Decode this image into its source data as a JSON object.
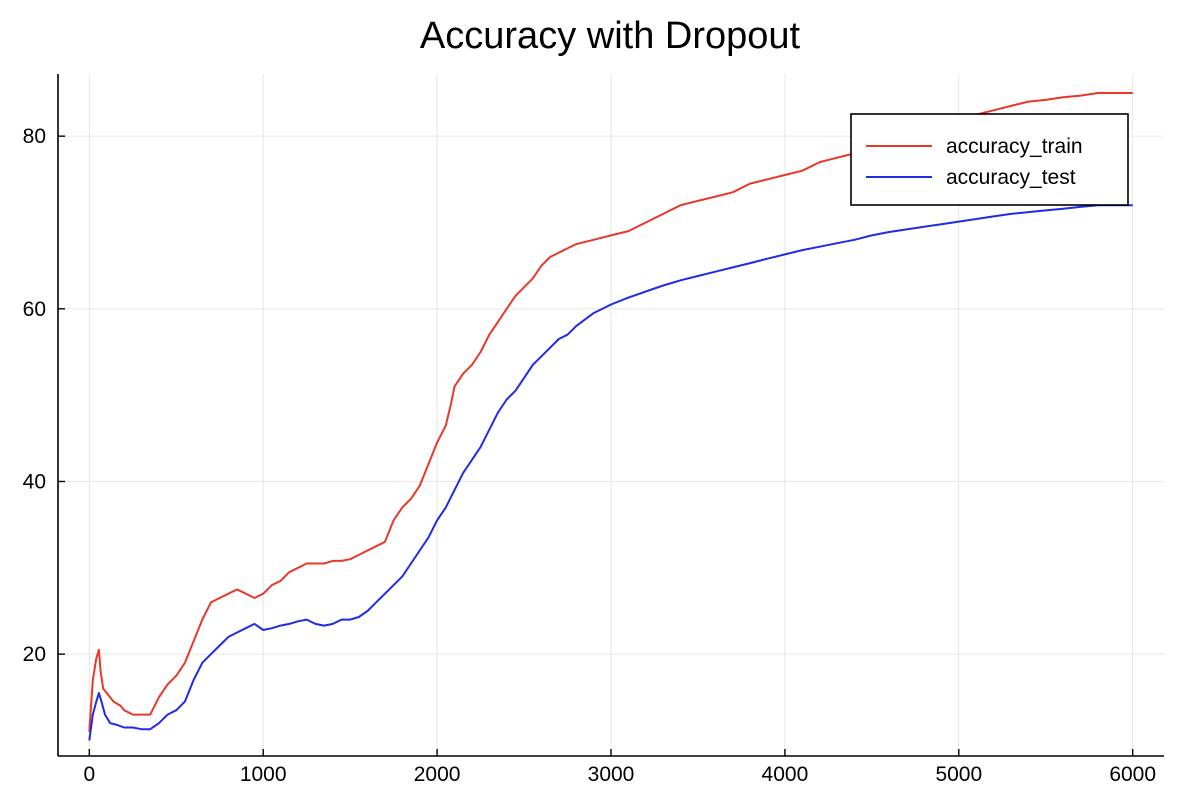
{
  "chart_data": {
    "type": "line",
    "title": "Accuracy with Dropout",
    "xlabel": "",
    "ylabel": "",
    "xlim": [
      -180,
      6180
    ],
    "ylim": [
      8.2,
      87.2
    ],
    "xticks": [
      0,
      1000,
      2000,
      3000,
      4000,
      5000,
      6000
    ],
    "yticks": [
      20,
      40,
      60,
      80
    ],
    "grid": true,
    "legend": {
      "position": "top-right"
    },
    "series": [
      {
        "name": "accuracy_train",
        "color": "#e8382a",
        "x": [
          0,
          20,
          40,
          55,
          65,
          80,
          100,
          140,
          180,
          200,
          250,
          300,
          350,
          400,
          450,
          500,
          550,
          600,
          650,
          700,
          750,
          800,
          850,
          900,
          950,
          1000,
          1050,
          1100,
          1150,
          1200,
          1250,
          1300,
          1350,
          1400,
          1450,
          1500,
          1550,
          1600,
          1650,
          1700,
          1750,
          1800,
          1850,
          1900,
          1950,
          2000,
          2050,
          2080,
          2100,
          2150,
          2200,
          2250,
          2300,
          2350,
          2400,
          2450,
          2500,
          2550,
          2600,
          2650,
          2700,
          2750,
          2800,
          2900,
          3000,
          3100,
          3200,
          3300,
          3400,
          3500,
          3600,
          3700,
          3800,
          3900,
          4000,
          4100,
          4200,
          4300,
          4400,
          4500,
          4600,
          4700,
          4800,
          4900,
          5000,
          5100,
          5200,
          5300,
          5400,
          5500,
          5600,
          5700,
          5800,
          5900,
          6000
        ],
        "y": [
          11,
          17,
          19.5,
          20.5,
          18,
          16,
          15.5,
          14.5,
          14,
          13.5,
          13,
          13,
          13,
          15,
          16.5,
          17.5,
          19,
          21.5,
          24,
          26,
          26.5,
          27,
          27.5,
          27,
          26.5,
          27,
          28,
          28.5,
          29.5,
          30,
          30.5,
          30.5,
          30.5,
          30.8,
          30.8,
          31,
          31.5,
          32,
          32.5,
          33,
          35.5,
          37,
          38,
          39.5,
          42,
          44.5,
          46.5,
          49,
          51,
          52.5,
          53.5,
          55,
          57,
          58.5,
          60,
          61.5,
          62.5,
          63.5,
          65,
          66,
          66.5,
          67,
          67.5,
          68,
          68.5,
          69,
          70,
          71,
          72,
          72.5,
          73,
          73.5,
          74.5,
          75,
          75.5,
          76,
          77,
          77.5,
          78,
          78.5,
          79,
          80,
          80.5,
          81,
          81.5,
          82.5,
          83,
          83.5,
          84,
          84.2,
          84.5,
          84.7,
          85,
          85,
          85
        ]
      },
      {
        "name": "accuracy_test",
        "color": "#1f2be8",
        "x": [
          0,
          20,
          40,
          55,
          70,
          90,
          120,
          160,
          200,
          250,
          300,
          350,
          400,
          450,
          500,
          550,
          600,
          650,
          700,
          750,
          800,
          850,
          900,
          950,
          1000,
          1050,
          1100,
          1150,
          1200,
          1250,
          1300,
          1350,
          1400,
          1450,
          1500,
          1550,
          1600,
          1650,
          1700,
          1750,
          1800,
          1850,
          1900,
          1950,
          2000,
          2050,
          2100,
          2150,
          2200,
          2250,
          2300,
          2350,
          2400,
          2450,
          2500,
          2550,
          2600,
          2650,
          2700,
          2750,
          2800,
          2900,
          3000,
          3100,
          3200,
          3300,
          3400,
          3500,
          3600,
          3700,
          3800,
          3900,
          4000,
          4100,
          4200,
          4300,
          4400,
          4500,
          4600,
          4700,
          4800,
          4900,
          5000,
          5100,
          5200,
          5300,
          5400,
          5500,
          5600,
          5700,
          5800,
          5900,
          6000
        ],
        "y": [
          10,
          13,
          14.5,
          15.5,
          14.5,
          13,
          12,
          11.8,
          11.5,
          11.5,
          11.3,
          11.3,
          12,
          13,
          13.5,
          14.5,
          17,
          19,
          20,
          21,
          22,
          22.5,
          23,
          23.5,
          22.8,
          23,
          23.3,
          23.5,
          23.8,
          24,
          23.5,
          23.3,
          23.5,
          24,
          24,
          24.3,
          25,
          26,
          27,
          28,
          29,
          30.5,
          32,
          33.5,
          35.5,
          37,
          39,
          41,
          42.5,
          44,
          46,
          48,
          49.5,
          50.5,
          52,
          53.5,
          54.5,
          55.5,
          56.5,
          57,
          58,
          59.5,
          60.5,
          61.3,
          62,
          62.7,
          63.3,
          63.8,
          64.3,
          64.8,
          65.3,
          65.8,
          66.3,
          66.8,
          67.2,
          67.6,
          68,
          68.5,
          68.9,
          69.2,
          69.5,
          69.8,
          70.1,
          70.4,
          70.7,
          71,
          71.2,
          71.4,
          71.6,
          71.8,
          72,
          72,
          72
        ]
      }
    ]
  }
}
